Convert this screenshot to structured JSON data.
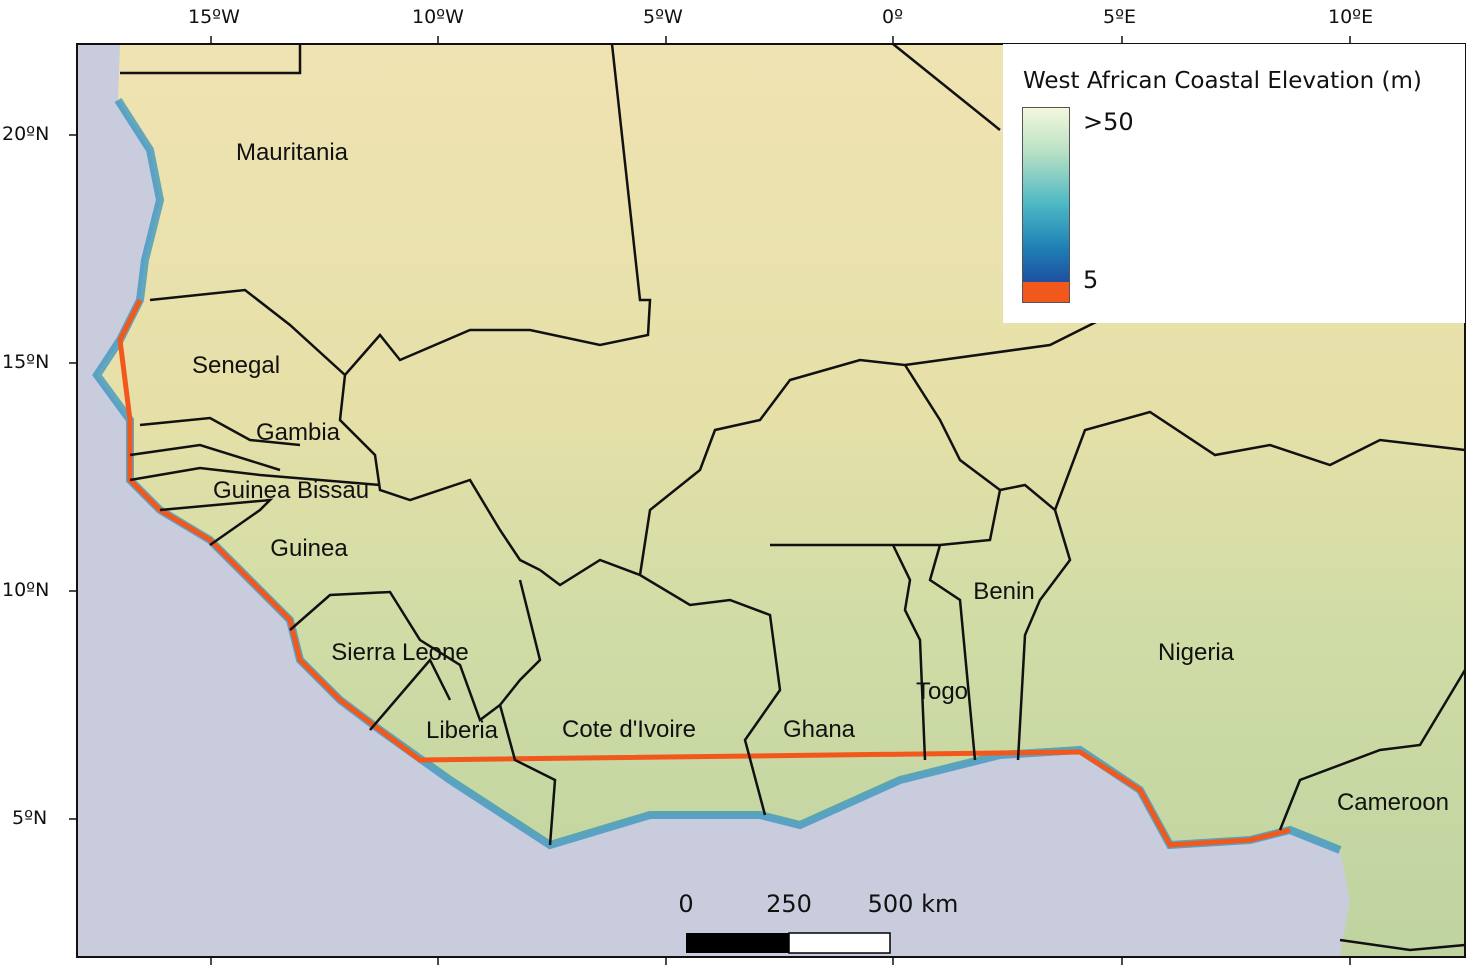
{
  "axes": {
    "longitude_ticks": [
      "15ºW",
      "10ºW",
      "5ºW",
      "0º",
      "5ºE",
      "10ºE"
    ],
    "latitude_ticks": [
      "20ºN",
      "15ºN",
      "10ºN",
      "5ºN"
    ]
  },
  "countries": [
    "Mauritania",
    "Senegal",
    "Gambia",
    "Guinea Bissau",
    "Guinea",
    "Sierra Leone",
    "Liberia",
    "Cote d'Ivoire",
    "Ghana",
    "Togo",
    "Benin",
    "Nigeria",
    "Cameroon"
  ],
  "legend": {
    "title": "West African Coastal Elevation (m)",
    "high_label": ">50",
    "low_label": "5",
    "colors": {
      "high": "#f4f7dc",
      "mid": "#4cb8c4",
      "low_blue": "#1d4fa0",
      "below5": "#f2571c"
    }
  },
  "scale_bar": {
    "labels": [
      "0",
      "250",
      "500 km"
    ]
  },
  "colors": {
    "ocean": "#c9ccdc",
    "land": "#e9dfa8",
    "land_south": "#c8d8a4",
    "border": "#111111"
  }
}
